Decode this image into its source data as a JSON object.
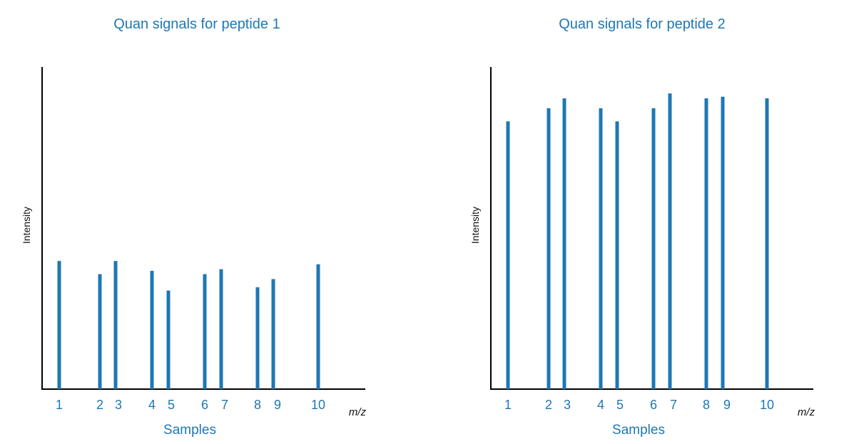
{
  "chart_data": [
    {
      "type": "bar",
      "title": "Quan signals for peptide 1",
      "xlabel": "Samples",
      "ylabel": "Intensity",
      "x_unit": "m/z",
      "categories": [
        "1",
        "2",
        "3",
        "4",
        "5",
        "6",
        "7",
        "8",
        "9",
        "10"
      ],
      "values": [
        39,
        35,
        39,
        36,
        30,
        35,
        36.5,
        31,
        33.5,
        38
      ],
      "ylim": [
        0,
        100
      ],
      "grid": false,
      "color": "#1f77b4"
    },
    {
      "type": "bar",
      "title": "Quan signals for peptide 2",
      "xlabel": "Samples",
      "ylabel": "Intensity",
      "x_unit": "m/z",
      "categories": [
        "1",
        "2",
        "3",
        "4",
        "5",
        "6",
        "7",
        "8",
        "9",
        "10"
      ],
      "values": [
        81.5,
        85.5,
        88.5,
        85.5,
        81.5,
        85.5,
        90,
        88.5,
        89,
        88.5
      ],
      "ylim": [
        0,
        100
      ],
      "grid": false,
      "color": "#1f77b4"
    }
  ]
}
